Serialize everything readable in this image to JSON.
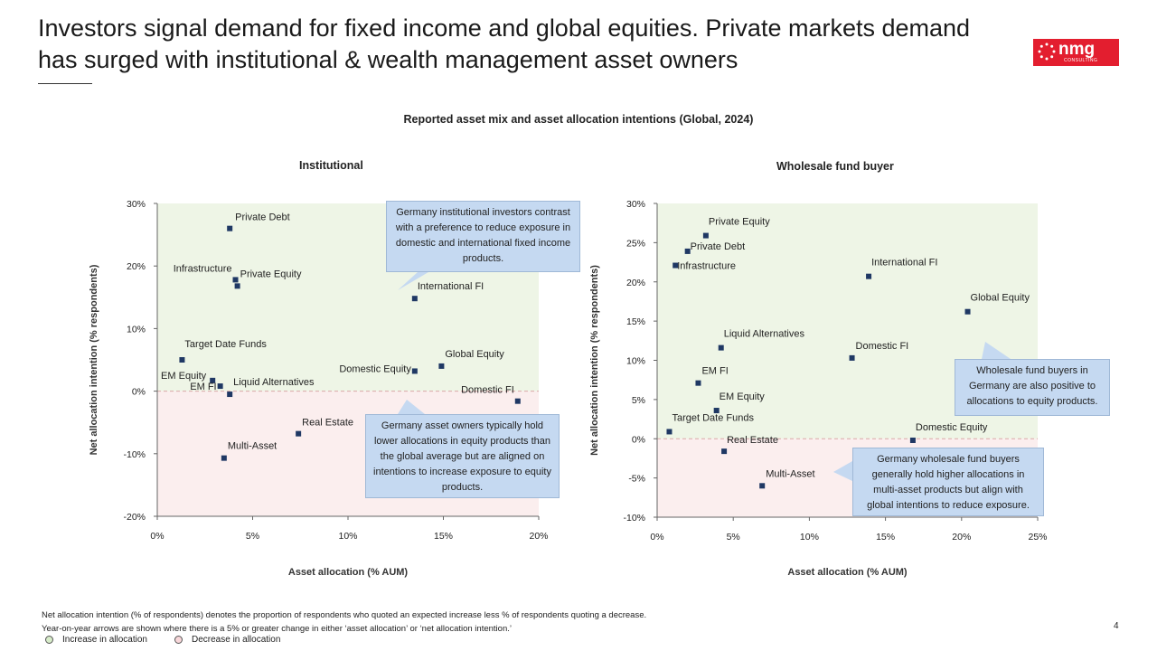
{
  "slide": {
    "headline": "Investors signal demand for fixed income and global equities. Private markets demand has surged with institutional & wealth management asset owners",
    "logo_text": "nmg",
    "logo_subtext": "CONSULTING",
    "page_number": "4",
    "footnotes": [
      "Net allocation intention (% of respondents) denotes the proportion of respondents who quoted an expected increase less % of respondents quoting a decrease.",
      "Year-on-year arrows are shown where there is a 5% or greater change in either ‘asset allocation’ or ‘net allocation intention.’"
    ],
    "legend": [
      {
        "label": "Increase in allocation",
        "color": "#d7ecc9"
      },
      {
        "label": "Decrease in allocation",
        "color": "#f8d7da"
      }
    ]
  },
  "chart_data": {
    "title": "Reported asset mix and asset allocation intentions (Global, 2024)",
    "charts": [
      {
        "type": "scatter",
        "title": "Institutional",
        "xlabel": "Asset allocation (% AUM)",
        "ylabel": "Net allocation intention (% respondents)",
        "xlim": [
          0,
          20
        ],
        "ylim": [
          -20,
          30
        ],
        "xticks": [
          0,
          5,
          10,
          15,
          20
        ],
        "yticks": [
          -20,
          -10,
          0,
          10,
          20,
          30
        ],
        "xtick_labels": [
          "0%",
          "5%",
          "10%",
          "15%",
          "20%"
        ],
        "ytick_labels": [
          "-20%",
          "-10%",
          "0%",
          "10%",
          "20%",
          "30%"
        ],
        "positive_region_color": "#eef5e6",
        "negative_region_color": "#fbeeee",
        "marker_color": "#1f3864",
        "points": [
          {
            "label": "Private Debt",
            "x": 3.8,
            "y": 26.0
          },
          {
            "label": "Infrastructure",
            "x": 4.1,
            "y": 17.8
          },
          {
            "label": "Private Equity",
            "x": 4.2,
            "y": 16.8
          },
          {
            "label": "International FI",
            "x": 13.5,
            "y": 14.8
          },
          {
            "label": "Target Date Funds",
            "x": 1.3,
            "y": 5.0
          },
          {
            "label": "Global Equity",
            "x": 14.9,
            "y": 4.0
          },
          {
            "label": "Domestic Equity",
            "x": 13.5,
            "y": 3.2
          },
          {
            "label": "EM Equity",
            "x": 2.9,
            "y": 1.7
          },
          {
            "label": "EM FI",
            "x": 3.3,
            "y": 0.8
          },
          {
            "label": "Liquid Alternatives",
            "x": 3.8,
            "y": -0.5
          },
          {
            "label": "Domestic FI",
            "x": 18.9,
            "y": -1.6
          },
          {
            "label": "Real Estate",
            "x": 7.4,
            "y": -6.8
          },
          {
            "label": "Multi-Asset",
            "x": 3.5,
            "y": -10.7
          }
        ],
        "callouts": [
          {
            "text": "Germany institutional investors contrast with a preference to reduce exposure in domestic and international fixed income products."
          },
          {
            "text": "Germany asset owners typically hold lower allocations in equity products than the global average but are aligned on intentions to increase exposure to equity products."
          }
        ]
      },
      {
        "type": "scatter",
        "title": "Wholesale fund buyer",
        "xlabel": "Asset allocation (% AUM)",
        "ylabel": "Net allocation intention (% respondents)",
        "xlim": [
          0,
          25
        ],
        "ylim": [
          -10,
          30
        ],
        "xticks": [
          0,
          5,
          10,
          15,
          20,
          25
        ],
        "yticks": [
          -10,
          -5,
          0,
          5,
          10,
          15,
          20,
          25,
          30
        ],
        "xtick_labels": [
          "0%",
          "5%",
          "10%",
          "15%",
          "20%",
          "25%"
        ],
        "ytick_labels": [
          "-10%",
          "-5%",
          "0%",
          "5%",
          "10%",
          "15%",
          "20%",
          "25%",
          "30%"
        ],
        "positive_region_color": "#eef5e6",
        "negative_region_color": "#fbeeee",
        "marker_color": "#1f3864",
        "points": [
          {
            "label": "Private Equity",
            "x": 3.2,
            "y": 25.9
          },
          {
            "label": "Private Debt",
            "x": 2.0,
            "y": 23.9
          },
          {
            "label": "Infrastructure",
            "x": 1.2,
            "y": 22.1
          },
          {
            "label": "International FI",
            "x": 13.9,
            "y": 20.7
          },
          {
            "label": "Global Equity",
            "x": 20.4,
            "y": 16.2
          },
          {
            "label": "Liquid Alternatives",
            "x": 4.2,
            "y": 11.6
          },
          {
            "label": "Domestic FI",
            "x": 12.8,
            "y": 10.3
          },
          {
            "label": "EM FI",
            "x": 2.7,
            "y": 7.1
          },
          {
            "label": "EM Equity",
            "x": 3.9,
            "y": 3.6
          },
          {
            "label": "Target Date Funds",
            "x": 0.8,
            "y": 0.9
          },
          {
            "label": "Domestic Equity",
            "x": 16.8,
            "y": -0.2
          },
          {
            "label": "Real Estate",
            "x": 4.4,
            "y": -1.6
          },
          {
            "label": "Multi-Asset",
            "x": 6.9,
            "y": -6.0
          }
        ],
        "callouts": [
          {
            "text": "Wholesale fund buyers in Germany are also positive to allocations to equity products."
          },
          {
            "text": "Germany wholesale fund buyers generally hold higher allocations in multi-asset products but align with global intentions to reduce exposure."
          }
        ]
      }
    ]
  }
}
